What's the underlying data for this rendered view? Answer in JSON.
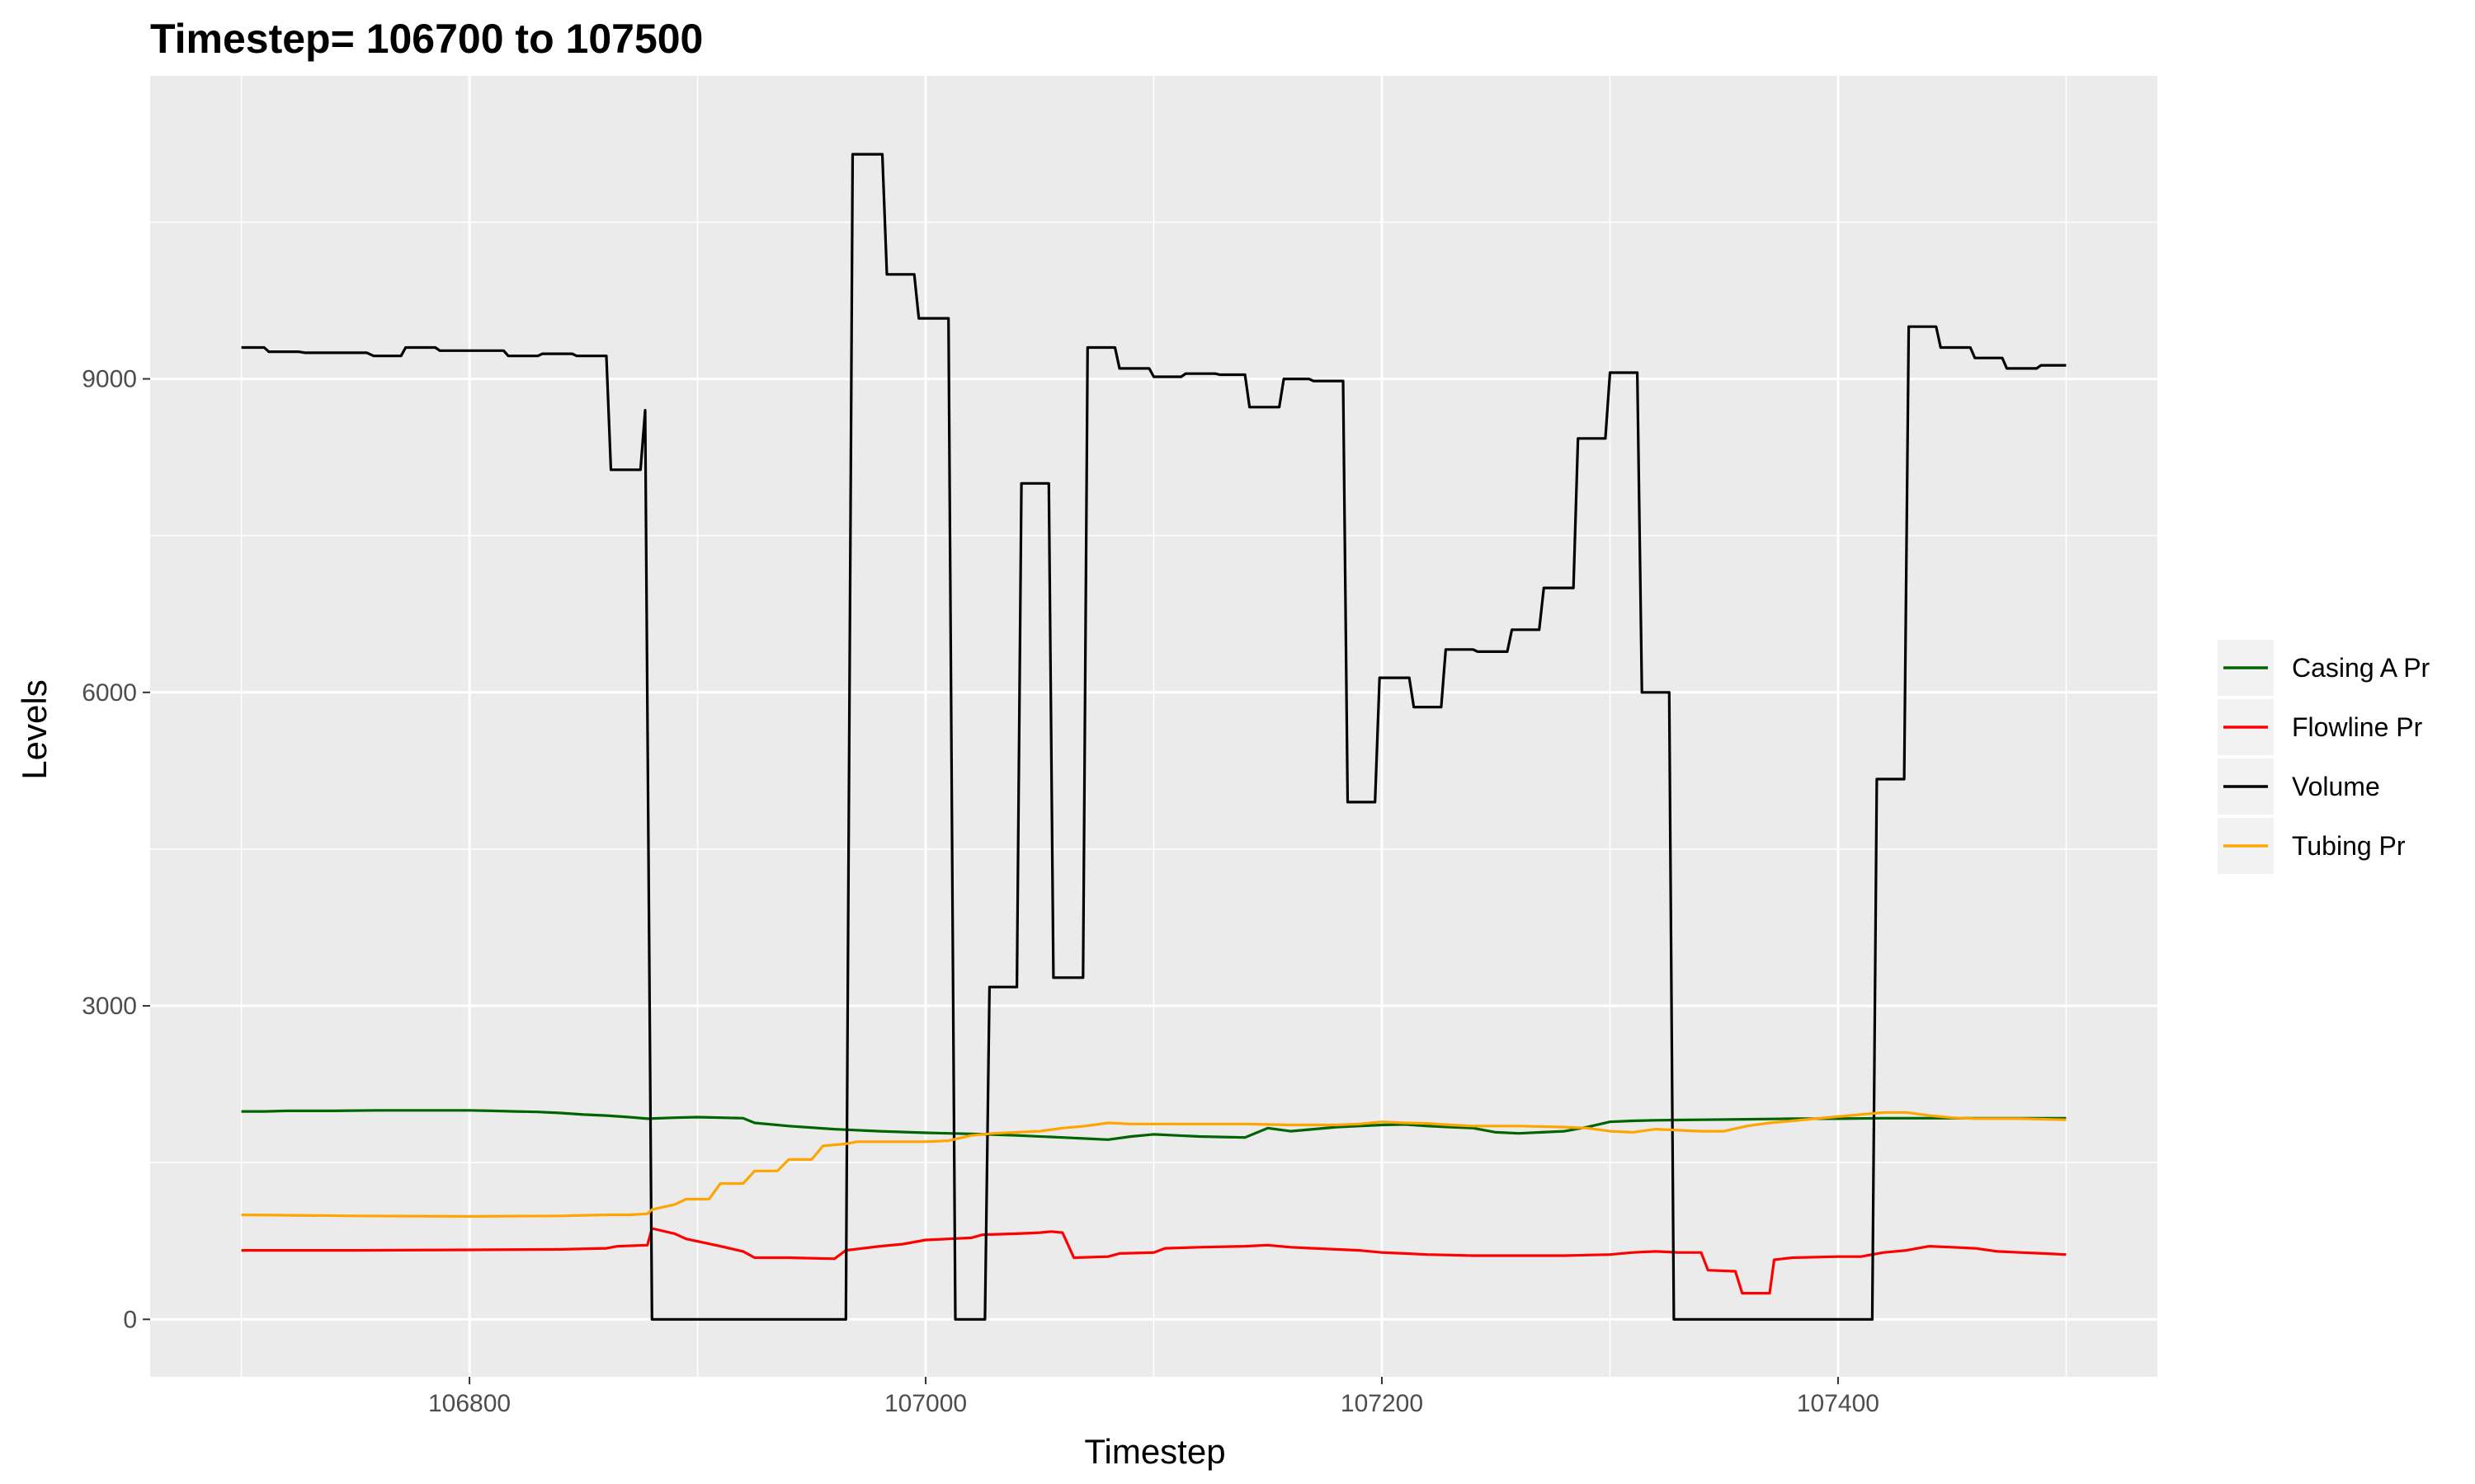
{
  "chart_data": {
    "type": "line",
    "title": "Timestep= 106700 to 107500",
    "xlabel": "Timestep",
    "ylabel": "Levels",
    "xlim": [
      106660,
      107540
    ],
    "ylim": [
      -550,
      11900
    ],
    "x_ticks": [
      106800,
      107000,
      107200,
      107400
    ],
    "x_tick_labels": [
      "106800",
      "107000",
      "107200",
      "107400"
    ],
    "y_ticks": [
      0,
      3000,
      6000,
      9000
    ],
    "y_tick_labels": [
      "0",
      "3000",
      "6000",
      "9000"
    ],
    "grid": true,
    "legend_position": "right",
    "series": [
      {
        "name": "Casing A Pr",
        "color": "#006400",
        "points": [
          [
            106700,
            1990
          ],
          [
            106710,
            1990
          ],
          [
            106720,
            1995
          ],
          [
            106740,
            1995
          ],
          [
            106760,
            2000
          ],
          [
            106780,
            2000
          ],
          [
            106800,
            2000
          ],
          [
            106810,
            1995
          ],
          [
            106820,
            1990
          ],
          [
            106830,
            1985
          ],
          [
            106840,
            1975
          ],
          [
            106850,
            1960
          ],
          [
            106860,
            1950
          ],
          [
            106870,
            1935
          ],
          [
            106878,
            1920
          ],
          [
            106890,
            1930
          ],
          [
            106900,
            1935
          ],
          [
            106920,
            1925
          ],
          [
            106925,
            1880
          ],
          [
            106940,
            1850
          ],
          [
            106960,
            1820
          ],
          [
            106980,
            1800
          ],
          [
            107000,
            1785
          ],
          [
            107010,
            1780
          ],
          [
            107020,
            1775
          ],
          [
            107040,
            1760
          ],
          [
            107060,
            1740
          ],
          [
            107070,
            1730
          ],
          [
            107080,
            1720
          ],
          [
            107090,
            1750
          ],
          [
            107100,
            1770
          ],
          [
            107110,
            1760
          ],
          [
            107120,
            1750
          ],
          [
            107130,
            1745
          ],
          [
            107140,
            1740
          ],
          [
            107150,
            1830
          ],
          [
            107160,
            1800
          ],
          [
            107170,
            1820
          ],
          [
            107180,
            1840
          ],
          [
            107190,
            1850
          ],
          [
            107200,
            1860
          ],
          [
            107210,
            1865
          ],
          [
            107220,
            1850
          ],
          [
            107230,
            1840
          ],
          [
            107240,
            1830
          ],
          [
            107250,
            1790
          ],
          [
            107260,
            1780
          ],
          [
            107270,
            1790
          ],
          [
            107280,
            1800
          ],
          [
            107290,
            1840
          ],
          [
            107300,
            1890
          ],
          [
            107310,
            1900
          ],
          [
            107320,
            1905
          ],
          [
            107340,
            1910
          ],
          [
            107360,
            1915
          ],
          [
            107380,
            1920
          ],
          [
            107400,
            1920
          ],
          [
            107420,
            1925
          ],
          [
            107440,
            1925
          ],
          [
            107460,
            1925
          ],
          [
            107480,
            1925
          ],
          [
            107500,
            1925
          ]
        ]
      },
      {
        "name": "Flowline Pr",
        "color": "#ff0000",
        "points": [
          [
            106700,
            660
          ],
          [
            106750,
            660
          ],
          [
            106800,
            665
          ],
          [
            106840,
            670
          ],
          [
            106860,
            680
          ],
          [
            106865,
            700
          ],
          [
            106878,
            710
          ],
          [
            106880,
            870
          ],
          [
            106890,
            820
          ],
          [
            106895,
            770
          ],
          [
            106910,
            700
          ],
          [
            106920,
            650
          ],
          [
            106925,
            590
          ],
          [
            106940,
            590
          ],
          [
            106960,
            580
          ],
          [
            106965,
            660
          ],
          [
            106980,
            700
          ],
          [
            106990,
            720
          ],
          [
            107000,
            760
          ],
          [
            107010,
            770
          ],
          [
            107020,
            780
          ],
          [
            107025,
            810
          ],
          [
            107040,
            820
          ],
          [
            107050,
            830
          ],
          [
            107055,
            840
          ],
          [
            107060,
            830
          ],
          [
            107065,
            590
          ],
          [
            107080,
            600
          ],
          [
            107085,
            630
          ],
          [
            107100,
            640
          ],
          [
            107105,
            680
          ],
          [
            107120,
            690
          ],
          [
            107140,
            700
          ],
          [
            107150,
            710
          ],
          [
            107160,
            690
          ],
          [
            107170,
            680
          ],
          [
            107180,
            670
          ],
          [
            107190,
            660
          ],
          [
            107200,
            640
          ],
          [
            107210,
            630
          ],
          [
            107220,
            620
          ],
          [
            107240,
            610
          ],
          [
            107260,
            610
          ],
          [
            107280,
            610
          ],
          [
            107300,
            620
          ],
          [
            107310,
            640
          ],
          [
            107320,
            650
          ],
          [
            107330,
            640
          ],
          [
            107340,
            640
          ],
          [
            107343,
            470
          ],
          [
            107355,
            460
          ],
          [
            107358,
            250
          ],
          [
            107370,
            250
          ],
          [
            107372,
            570
          ],
          [
            107380,
            590
          ],
          [
            107400,
            600
          ],
          [
            107410,
            600
          ],
          [
            107420,
            640
          ],
          [
            107430,
            660
          ],
          [
            107440,
            700
          ],
          [
            107450,
            690
          ],
          [
            107460,
            680
          ],
          [
            107470,
            650
          ],
          [
            107480,
            640
          ],
          [
            107490,
            630
          ],
          [
            107500,
            620
          ]
        ]
      },
      {
        "name": "Volume",
        "color": "#000000",
        "points": [
          [
            106700,
            9300
          ],
          [
            106710,
            9300
          ],
          [
            106712,
            9260
          ],
          [
            106725,
            9260
          ],
          [
            106728,
            9250
          ],
          [
            106755,
            9250
          ],
          [
            106758,
            9220
          ],
          [
            106770,
            9220
          ],
          [
            106772,
            9300
          ],
          [
            106785,
            9300
          ],
          [
            106787,
            9270
          ],
          [
            106815,
            9270
          ],
          [
            106817,
            9220
          ],
          [
            106830,
            9220
          ],
          [
            106832,
            9240
          ],
          [
            106845,
            9240
          ],
          [
            106847,
            9220
          ],
          [
            106860,
            9220
          ],
          [
            106862,
            8130
          ],
          [
            106875,
            8130
          ],
          [
            106877,
            8700
          ],
          [
            106880,
            0
          ],
          [
            106965,
            0
          ],
          [
            106968,
            11150
          ],
          [
            106981,
            11150
          ],
          [
            106983,
            10000
          ],
          [
            106995,
            10000
          ],
          [
            106997,
            9580
          ],
          [
            107010,
            9580
          ],
          [
            107013,
            0
          ],
          [
            107026,
            0
          ],
          [
            107028,
            3180
          ],
          [
            107040,
            3180
          ],
          [
            107042,
            8000
          ],
          [
            107054,
            8000
          ],
          [
            107056,
            3270
          ],
          [
            107069,
            3270
          ],
          [
            107071,
            9300
          ],
          [
            107083,
            9300
          ],
          [
            107085,
            9100
          ],
          [
            107098,
            9100
          ],
          [
            107100,
            9020
          ],
          [
            107112,
            9020
          ],
          [
            107114,
            9050
          ],
          [
            107127,
            9050
          ],
          [
            107129,
            9040
          ],
          [
            107140,
            9040
          ],
          [
            107142,
            8730
          ],
          [
            107155,
            8730
          ],
          [
            107157,
            9000
          ],
          [
            107168,
            9000
          ],
          [
            107170,
            8980
          ],
          [
            107183,
            8980
          ],
          [
            107185,
            4950
          ],
          [
            107197,
            4950
          ],
          [
            107199,
            6140
          ],
          [
            107212,
            6140
          ],
          [
            107214,
            5860
          ],
          [
            107226,
            5860
          ],
          [
            107228,
            6410
          ],
          [
            107240,
            6410
          ],
          [
            107242,
            6390
          ],
          [
            107255,
            6390
          ],
          [
            107257,
            6600
          ],
          [
            107269,
            6600
          ],
          [
            107271,
            7000
          ],
          [
            107284,
            7000
          ],
          [
            107286,
            8430
          ],
          [
            107298,
            8430
          ],
          [
            107300,
            9060
          ],
          [
            107312,
            9060
          ],
          [
            107314,
            6000
          ],
          [
            107326,
            6000
          ],
          [
            107328,
            0
          ],
          [
            107415,
            0
          ],
          [
            107417,
            5170
          ],
          [
            107429,
            5170
          ],
          [
            107431,
            9500
          ],
          [
            107443,
            9500
          ],
          [
            107445,
            9300
          ],
          [
            107458,
            9300
          ],
          [
            107460,
            9200
          ],
          [
            107472,
            9200
          ],
          [
            107474,
            9100
          ],
          [
            107487,
            9100
          ],
          [
            107489,
            9130
          ],
          [
            107500,
            9130
          ]
        ]
      },
      {
        "name": "Tubing Pr",
        "color": "#ffa500",
        "points": [
          [
            106700,
            1000
          ],
          [
            106750,
            990
          ],
          [
            106800,
            985
          ],
          [
            106840,
            990
          ],
          [
            106860,
            1000
          ],
          [
            106870,
            1000
          ],
          [
            106878,
            1010
          ],
          [
            106880,
            1050
          ],
          [
            106890,
            1100
          ],
          [
            106895,
            1150
          ],
          [
            106905,
            1150
          ],
          [
            106910,
            1300
          ],
          [
            106920,
            1300
          ],
          [
            106925,
            1420
          ],
          [
            106935,
            1420
          ],
          [
            106940,
            1530
          ],
          [
            106950,
            1530
          ],
          [
            106955,
            1660
          ],
          [
            106965,
            1680
          ],
          [
            106970,
            1700
          ],
          [
            106980,
            1700
          ],
          [
            107000,
            1700
          ],
          [
            107010,
            1710
          ],
          [
            107020,
            1760
          ],
          [
            107030,
            1780
          ],
          [
            107040,
            1790
          ],
          [
            107050,
            1800
          ],
          [
            107060,
            1830
          ],
          [
            107070,
            1850
          ],
          [
            107080,
            1880
          ],
          [
            107090,
            1870
          ],
          [
            107100,
            1870
          ],
          [
            107120,
            1870
          ],
          [
            107140,
            1870
          ],
          [
            107160,
            1860
          ],
          [
            107180,
            1860
          ],
          [
            107190,
            1870
          ],
          [
            107200,
            1890
          ],
          [
            107210,
            1880
          ],
          [
            107220,
            1875
          ],
          [
            107230,
            1860
          ],
          [
            107240,
            1850
          ],
          [
            107260,
            1850
          ],
          [
            107280,
            1840
          ],
          [
            107290,
            1830
          ],
          [
            107300,
            1800
          ],
          [
            107310,
            1790
          ],
          [
            107320,
            1820
          ],
          [
            107330,
            1810
          ],
          [
            107340,
            1800
          ],
          [
            107350,
            1800
          ],
          [
            107360,
            1850
          ],
          [
            107370,
            1880
          ],
          [
            107380,
            1900
          ],
          [
            107390,
            1920
          ],
          [
            107400,
            1940
          ],
          [
            107410,
            1960
          ],
          [
            107420,
            1980
          ],
          [
            107430,
            1980
          ],
          [
            107440,
            1950
          ],
          [
            107450,
            1930
          ],
          [
            107460,
            1920
          ],
          [
            107480,
            1920
          ],
          [
            107500,
            1910
          ]
        ]
      }
    ]
  }
}
